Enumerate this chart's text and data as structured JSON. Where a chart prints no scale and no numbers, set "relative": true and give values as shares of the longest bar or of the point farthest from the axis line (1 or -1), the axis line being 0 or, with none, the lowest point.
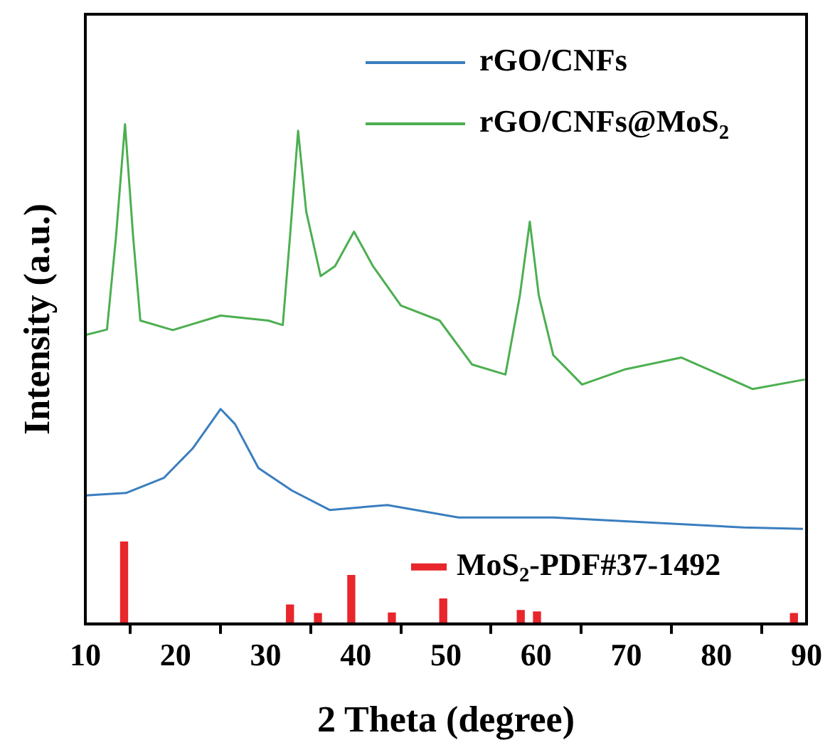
{
  "chart_data": {
    "type": "line",
    "relative": true,
    "xlabel": "2 Theta (degree)",
    "ylabel": "Intensity (a.u.)",
    "xlim": [
      10,
      90
    ],
    "xticks": [
      10,
      20,
      30,
      40,
      50,
      60,
      70,
      80,
      90
    ],
    "legend": "top right",
    "series": [
      {
        "name": "rGO/CNFs",
        "color": "#3a7ebf",
        "x": [
          10,
          14.5,
          18.7,
          21.9,
          25.0,
          26.6,
          29.2,
          32.9,
          37.1,
          43.5,
          51.4,
          61.9,
          72.5,
          83.0,
          89.6
        ],
        "values": [
          0.257,
          0.262,
          0.292,
          0.351,
          0.43,
          0.4,
          0.312,
          0.267,
          0.228,
          0.238,
          0.213,
          0.213,
          0.203,
          0.193,
          0.19
        ]
      },
      {
        "name": "rGO/CNFs@MoS$_{2}$",
        "color": "#4caf50",
        "x": [
          10,
          12.4,
          13.4,
          14.4,
          15.3,
          16.1,
          19.7,
          25.0,
          30.3,
          31.9,
          32.7,
          33.6,
          34.5,
          36.1,
          37.7,
          39.8,
          41.9,
          45.0,
          49.3,
          52.9,
          56.6,
          58.2,
          59.3,
          60.3,
          61.9,
          65.1,
          69.8,
          76.1,
          80.4,
          84.0,
          89.8
        ],
        "values": [
          0.578,
          0.589,
          0.775,
          1.0,
          0.775,
          0.607,
          0.588,
          0.617,
          0.607,
          0.598,
          0.775,
          0.987,
          0.825,
          0.696,
          0.716,
          0.785,
          0.716,
          0.637,
          0.607,
          0.519,
          0.499,
          0.657,
          0.805,
          0.657,
          0.538,
          0.479,
          0.509,
          0.533,
          0.499,
          0.47,
          0.489
        ]
      },
      {
        "name": "MoS$_{2}$-PDF#37-1492",
        "type": "bar",
        "color": "#e8262b",
        "x": [
          14.3,
          32.7,
          35.8,
          39.5,
          44.0,
          49.7,
          58.3,
          60.1,
          88.6
        ],
        "values": [
          0.164,
          0.038,
          0.021,
          0.097,
          0.022,
          0.05,
          0.027,
          0.024,
          0.021
        ]
      }
    ]
  }
}
